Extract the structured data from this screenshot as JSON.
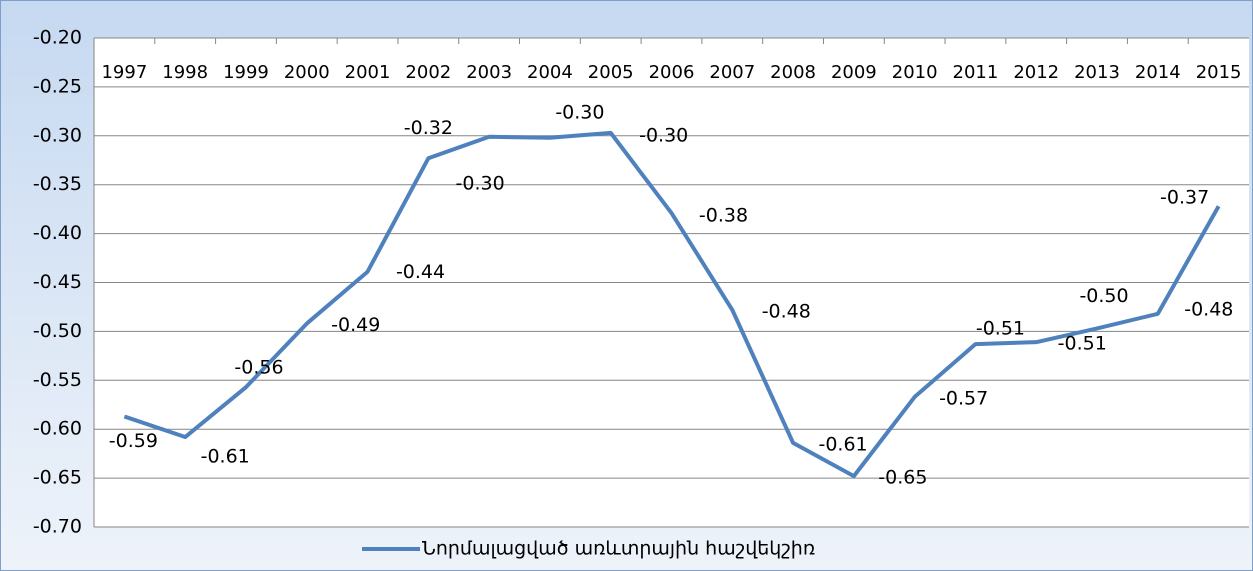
{
  "chart_data": {
    "type": "line",
    "categories": [
      "1997",
      "1998",
      "1999",
      "2000",
      "2001",
      "2002",
      "2003",
      "2004",
      "2005",
      "2006",
      "2007",
      "2008",
      "2009",
      "2010",
      "2011",
      "2012",
      "2013",
      "2014",
      "2015"
    ],
    "series": [
      {
        "name": "Նորմալացված առևտրային հաշվեկշիռ",
        "color": "#4f81bd",
        "values": [
          -0.587,
          -0.608,
          -0.557,
          -0.492,
          -0.439,
          -0.323,
          -0.301,
          -0.302,
          -0.297,
          -0.379,
          -0.478,
          -0.614,
          -0.648,
          -0.567,
          -0.513,
          -0.511,
          -0.497,
          -0.482,
          -0.372
        ],
        "value_labels": [
          "-0.59",
          "-0.61",
          "-0.56",
          "-0.49",
          "-0.44",
          "-0.32",
          "-0.30",
          "-0.30",
          "-0.30",
          "-0.38",
          "-0.48",
          "-0.61",
          "-0.65",
          "-0.57",
          "-0.51",
          "-0.51",
          "-0.50",
          "-0.48",
          "-0.37"
        ]
      }
    ],
    "ylim": [
      -0.7,
      -0.2
    ],
    "yticks": [
      {
        "value": -0.7,
        "label": "-0.70"
      },
      {
        "value": -0.65,
        "label": "-0.65"
      },
      {
        "value": -0.6,
        "label": "-0.60"
      },
      {
        "value": -0.55,
        "label": "-0.55"
      },
      {
        "value": -0.5,
        "label": "-0.50"
      },
      {
        "value": -0.45,
        "label": "-0.45"
      },
      {
        "value": -0.4,
        "label": "-0.40"
      },
      {
        "value": -0.35,
        "label": "-0.35"
      },
      {
        "value": -0.3,
        "label": "-0.30"
      },
      {
        "value": -0.25,
        "label": "-0.25"
      },
      {
        "value": -0.2,
        "label": "-0.20"
      }
    ],
    "grid": true,
    "legend": "bottom"
  }
}
